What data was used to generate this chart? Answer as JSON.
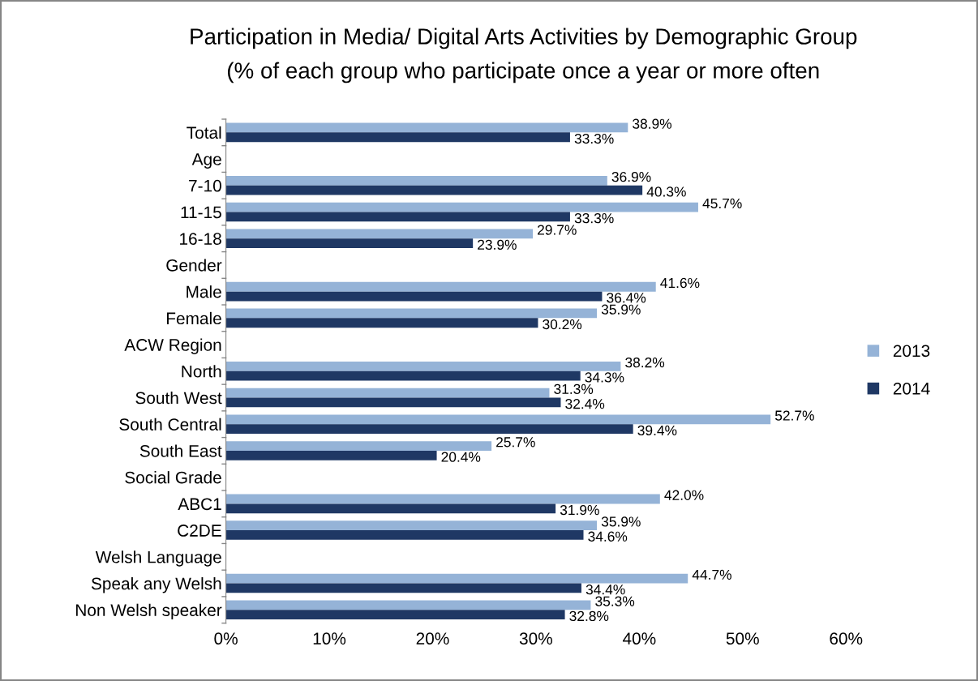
{
  "chart_data": {
    "type": "bar",
    "orientation": "horizontal",
    "title": "Participation in Media/ Digital Arts Activities by Demographic Group",
    "subtitle": "(% of each group who participate once a year or more often",
    "categories": [
      "Total",
      "Age",
      "7-10",
      "11-15",
      "16-18",
      "Gender",
      "Male",
      "Female",
      "ACW Region",
      "North",
      "South West",
      "South Central",
      "South East",
      "Social Grade",
      "ABC1",
      "C2DE",
      "Welsh Language",
      "Speak any Welsh",
      "Non Welsh speaker"
    ],
    "series": [
      {
        "name": "2013",
        "color": "#95b3d7",
        "values": [
          38.9,
          null,
          36.9,
          45.7,
          29.7,
          null,
          41.6,
          35.9,
          null,
          38.2,
          31.3,
          52.7,
          25.7,
          null,
          42.0,
          35.9,
          null,
          44.7,
          35.3
        ],
        "value_labels": [
          "38.9%",
          null,
          "36.9%",
          "45.7%",
          "29.7%",
          null,
          "41.6%",
          "35.9%",
          null,
          "38.2%",
          "31.3%",
          "52.7%",
          "25.7%",
          null,
          "42.0%",
          "35.9%",
          null,
          "44.7%",
          "35.3%"
        ]
      },
      {
        "name": "2014",
        "color": "#1f3864",
        "values": [
          33.3,
          null,
          40.3,
          33.3,
          23.9,
          null,
          36.4,
          30.2,
          null,
          34.3,
          32.4,
          39.4,
          20.4,
          null,
          31.9,
          34.6,
          null,
          34.4,
          32.8
        ],
        "value_labels": [
          "33.3%",
          null,
          "40.3%",
          "33.3%",
          "23.9%",
          null,
          "36.4%",
          "30.2%",
          null,
          "34.3%",
          "32.4%",
          "39.4%",
          "20.4%",
          null,
          "31.9%",
          "34.6%",
          null,
          "34.4%",
          "32.8%"
        ]
      }
    ],
    "xlim": [
      0,
      60
    ],
    "xticks": [
      {
        "value": 0,
        "label": "0%"
      },
      {
        "value": 10,
        "label": "10%"
      },
      {
        "value": 20,
        "label": "20%"
      },
      {
        "value": 30,
        "label": "30%"
      },
      {
        "value": 40,
        "label": "40%"
      },
      {
        "value": 50,
        "label": "50%"
      },
      {
        "value": 60,
        "label": "60%"
      }
    ],
    "grid": false,
    "legend": "right"
  }
}
